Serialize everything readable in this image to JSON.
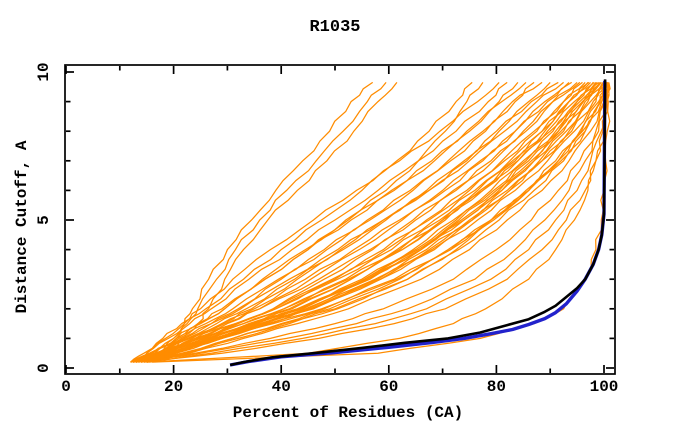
{
  "title": "R1035",
  "chart_data": {
    "type": "line",
    "title": "R1035",
    "xlabel": "Percent of Residues (CA)",
    "ylabel": "Distance Cutoff, A",
    "xlim": [
      0,
      100
    ],
    "ylim": [
      0,
      10
    ],
    "x_major_ticks": [
      0,
      20,
      40,
      60,
      80,
      100
    ],
    "x_minor_ticks": [
      10,
      30,
      50,
      70,
      90
    ],
    "y_major_ticks": [
      0,
      5,
      10
    ],
    "y_minor_ticks": [
      1,
      2,
      3,
      4,
      6,
      7,
      8,
      9
    ],
    "grid": false,
    "legend": "none",
    "colors": {
      "background": "#ffffff",
      "frame": "#000000",
      "ensemble": "#ff8c00",
      "highlight_black": "#000000",
      "highlight_blue": "#2222cc"
    },
    "y_levels": [
      0.2,
      0.5,
      1,
      1.5,
      2,
      3,
      4,
      5,
      6,
      7,
      8,
      9,
      9.65
    ],
    "series": [
      {
        "name": "highlight-black-curve",
        "color_key": "highlight_black",
        "width": 2.6,
        "points": [
          [
            30.5,
            0.1
          ],
          [
            33,
            0.2
          ],
          [
            38,
            0.35
          ],
          [
            46,
            0.5
          ],
          [
            55,
            0.68
          ],
          [
            63,
            0.85
          ],
          [
            71,
            1.0
          ],
          [
            77,
            1.2
          ],
          [
            82,
            1.45
          ],
          [
            86,
            1.65
          ],
          [
            89,
            1.9
          ],
          [
            91,
            2.1
          ],
          [
            93,
            2.4
          ],
          [
            95,
            2.7
          ],
          [
            96.5,
            3.0
          ],
          [
            98,
            3.5
          ],
          [
            99,
            4.0
          ],
          [
            99.6,
            4.5
          ],
          [
            100,
            5.2
          ],
          [
            100.1,
            7.0
          ],
          [
            100.2,
            9.75
          ]
        ]
      },
      {
        "name": "highlight-blue-curve",
        "color_key": "highlight_blue",
        "width": 3.4,
        "points": [
          [
            30.5,
            0.1
          ],
          [
            34,
            0.22
          ],
          [
            40,
            0.38
          ],
          [
            50,
            0.52
          ],
          [
            60,
            0.7
          ],
          [
            68,
            0.86
          ],
          [
            74,
            1.0
          ],
          [
            79,
            1.16
          ],
          [
            83,
            1.3
          ],
          [
            86,
            1.47
          ],
          [
            89,
            1.67
          ],
          [
            91,
            1.87
          ],
          [
            93,
            2.17
          ],
          [
            95,
            2.6
          ],
          [
            96.5,
            3.0
          ],
          [
            98,
            3.5
          ],
          [
            99,
            4.0
          ],
          [
            99.6,
            4.5
          ],
          [
            100,
            5.2
          ],
          [
            100.15,
            9.7
          ]
        ]
      }
    ],
    "ensemble": {
      "name": "ensemble-curves",
      "color_key": "ensemble",
      "width": 1.25,
      "x_at_levels": [
        [
          16,
          17.5,
          20,
          22,
          23.5,
          26.5,
          30,
          34.5,
          39,
          44,
          49,
          53,
          57
        ],
        [
          16.5,
          18,
          20.5,
          22.5,
          24.5,
          28,
          31.5,
          36,
          41,
          46.5,
          51.5,
          56,
          59.5
        ],
        [
          17,
          19,
          22,
          24.5,
          26.5,
          29.5,
          33,
          37.5,
          43,
          48.5,
          53.5,
          58,
          61.5
        ],
        [
          13,
          15,
          18.5,
          22,
          26,
          33,
          40,
          47.5,
          55,
          61.5,
          67.5,
          72.5,
          75.5
        ],
        [
          14,
          16.5,
          20.5,
          25,
          29.5,
          37,
          45,
          52,
          59.5,
          65.5,
          70.5,
          74.5,
          77.5
        ],
        [
          12,
          14.5,
          18,
          21.5,
          25,
          31,
          38,
          46,
          54,
          62,
          69.5,
          76.5,
          80.5
        ],
        [
          12.5,
          15,
          19,
          23,
          27,
          34,
          42,
          50,
          58,
          65.5,
          72.5,
          78.5,
          82
        ],
        [
          13,
          16,
          20.5,
          25,
          29.5,
          37,
          45,
          53,
          61,
          68.5,
          75,
          80.5,
          84
        ],
        [
          12,
          15.5,
          20,
          24.5,
          29,
          36.5,
          44.5,
          52.5,
          60.5,
          68,
          74.5,
          81,
          85.5
        ],
        [
          13.5,
          17,
          22,
          27,
          32,
          40,
          48.5,
          56.5,
          64.5,
          71.5,
          78,
          83.5,
          87
        ],
        [
          12.5,
          16,
          21,
          26,
          31,
          39.5,
          48,
          56,
          64,
          71,
          77.5,
          83,
          88.5
        ],
        [
          14,
          18,
          23.5,
          29,
          34.5,
          43,
          51.5,
          59.5,
          67.5,
          74.5,
          80.5,
          86,
          90
        ],
        [
          13,
          17,
          22.5,
          28,
          33.5,
          42.5,
          51,
          59,
          67,
          74,
          80,
          86.5,
          91.5
        ],
        [
          12,
          16,
          21.5,
          27,
          32.5,
          41.5,
          50.5,
          59,
          67.5,
          75,
          81.5,
          87.5,
          92.5
        ],
        [
          13.5,
          18,
          24,
          30,
          36,
          45.5,
          54.5,
          62.5,
          70.5,
          77.5,
          83.5,
          89,
          93.5
        ],
        [
          12.5,
          17,
          23,
          29,
          35,
          44.5,
          53.5,
          62,
          70,
          77,
          83.5,
          89.5,
          94
        ],
        [
          14,
          19,
          25.5,
          32,
          38.5,
          48,
          57,
          65,
          72.5,
          79.5,
          85.5,
          90.5,
          95
        ],
        [
          12,
          16.5,
          23,
          29.5,
          36,
          47,
          56.5,
          64.5,
          72,
          79,
          85,
          90.5,
          95.5
        ],
        [
          13,
          18,
          25,
          32,
          39,
          50,
          59.5,
          67.5,
          75,
          81.5,
          87.5,
          92.5,
          96
        ],
        [
          12.5,
          17.5,
          24.5,
          31.5,
          38.5,
          49.5,
          59,
          67,
          74.5,
          81,
          87,
          92.5,
          96.5
        ],
        [
          14,
          19.5,
          27,
          34.5,
          42,
          53,
          62.5,
          70,
          77,
          83.5,
          89,
          93.5,
          97
        ],
        [
          12,
          17.5,
          25,
          33,
          40.5,
          52,
          61.5,
          69.5,
          76.5,
          83,
          88.5,
          93.5,
          97.2
        ],
        [
          12,
          17,
          24,
          31.5,
          39,
          50.5,
          60.5,
          68.5,
          76,
          82.5,
          88.5,
          93.5,
          97.5
        ],
        [
          13.5,
          19,
          26.5,
          34,
          41.5,
          53,
          62.5,
          70.5,
          77.5,
          84,
          89.5,
          94.5,
          98
        ],
        [
          13.5,
          19.5,
          27.5,
          35.5,
          43.5,
          55,
          64.5,
          72,
          79,
          85,
          90.5,
          95,
          98.2
        ],
        [
          12.5,
          18,
          25.5,
          33,
          40.5,
          52.5,
          62,
          70,
          77.5,
          84,
          90,
          95,
          98.5
        ],
        [
          14,
          20,
          28,
          36,
          44,
          55.5,
          65,
          72.5,
          79.5,
          85.5,
          91,
          95.5,
          98.7
        ],
        [
          14.5,
          20.5,
          28.5,
          36.5,
          44.5,
          56.5,
          66,
          73.5,
          80.5,
          86.5,
          91.5,
          96,
          99
        ],
        [
          12.5,
          18.5,
          26.5,
          35,
          43.5,
          56,
          66,
          74,
          81,
          87,
          92,
          96.2,
          99.2
        ],
        [
          13,
          19,
          27,
          35,
          43,
          55.5,
          65.5,
          73,
          80,
          86,
          91.5,
          96,
          99.5
        ],
        [
          12,
          18,
          26,
          34.5,
          43,
          56,
          66,
          74,
          81,
          87,
          92.5,
          96.5,
          99.5
        ],
        [
          13,
          19.5,
          28,
          36.5,
          45,
          57.5,
          67,
          75,
          82,
          88,
          93,
          97,
          99.8
        ],
        [
          14,
          20.5,
          29,
          37.5,
          46,
          58.5,
          68,
          75.5,
          82.5,
          88.5,
          93.5,
          97.5,
          100
        ],
        [
          13.5,
          20,
          28.5,
          37,
          45.5,
          58,
          67.5,
          75.5,
          82.5,
          88.5,
          94,
          98,
          100.2
        ],
        [
          12.5,
          19,
          27.5,
          36.5,
          45.5,
          58.5,
          68.5,
          76.5,
          83.5,
          89.5,
          94.5,
          98.5,
          100.3
        ],
        [
          15,
          22,
          31,
          40,
          49,
          62,
          71.5,
          79,
          85.5,
          91,
          95.5,
          99,
          100.4
        ],
        [
          15,
          22.5,
          32,
          41.5,
          50.5,
          63.5,
          72.5,
          79.5,
          86,
          91.5,
          95.8,
          99.2,
          100.4
        ],
        [
          13,
          20,
          29,
          38.5,
          48,
          61.5,
          71.5,
          79,
          86,
          91.5,
          96,
          99.3,
          100.5
        ],
        [
          14,
          21.5,
          31,
          40.5,
          50,
          63.5,
          73,
          80.5,
          87,
          92.5,
          96.5,
          99.5,
          100.5
        ],
        [
          12.5,
          19.5,
          28.5,
          38,
          47.5,
          61,
          71,
          79,
          86,
          92,
          96.5,
          99.6,
          100.6
        ],
        [
          15.5,
          23,
          33,
          43,
          52.5,
          66,
          75,
          82,
          88.5,
          93.5,
          97.5,
          100,
          100.6
        ],
        [
          14,
          24,
          38,
          50,
          59,
          72,
          80,
          86.5,
          91.5,
          95.5,
          98.5,
          100.2,
          100.6
        ],
        [
          13,
          25,
          41,
          54,
          63.5,
          76,
          83.5,
          89,
          93.5,
          96.5,
          99,
          100.4,
          100.7
        ],
        [
          15,
          27,
          44,
          57.5,
          67,
          79,
          86,
          91,
          95,
          97.5,
          99.5,
          100.5,
          100.7
        ],
        [
          14.5,
          29,
          47,
          61,
          70.5,
          82,
          88.5,
          93,
          96.5,
          98.5,
          100,
          100.6,
          100.8
        ],
        [
          15,
          45,
          62,
          72,
          78,
          86,
          91,
          94.5,
          97,
          98.5,
          99.8,
          100.5,
          100.8
        ],
        [
          16,
          58,
          77,
          87,
          92.5,
          96.5,
          98.5,
          99.5,
          100,
          100.3,
          100.6,
          100.8,
          100.9
        ]
      ]
    }
  }
}
